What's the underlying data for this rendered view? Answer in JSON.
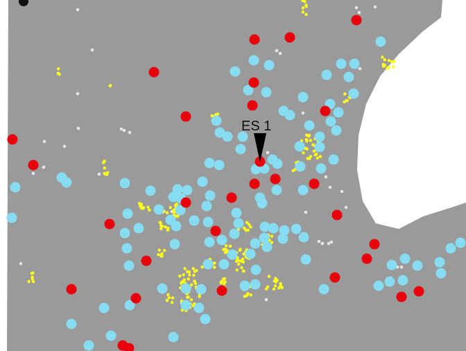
{
  "map": {
    "land_color": "#9a9a9a",
    "water_color": "#ffffff",
    "marker_label": "ES 1",
    "pointer_icon": "down-arrow-pointer",
    "symbols": [
      {
        "name": "red-site-marker",
        "color": "#e8000b"
      },
      {
        "name": "cyan-site-marker",
        "color": "#87dcf2"
      },
      {
        "name": "yellow-point",
        "color": "#ffff1a"
      },
      {
        "name": "white-point",
        "color": "#e6e6e6"
      }
    ]
  }
}
